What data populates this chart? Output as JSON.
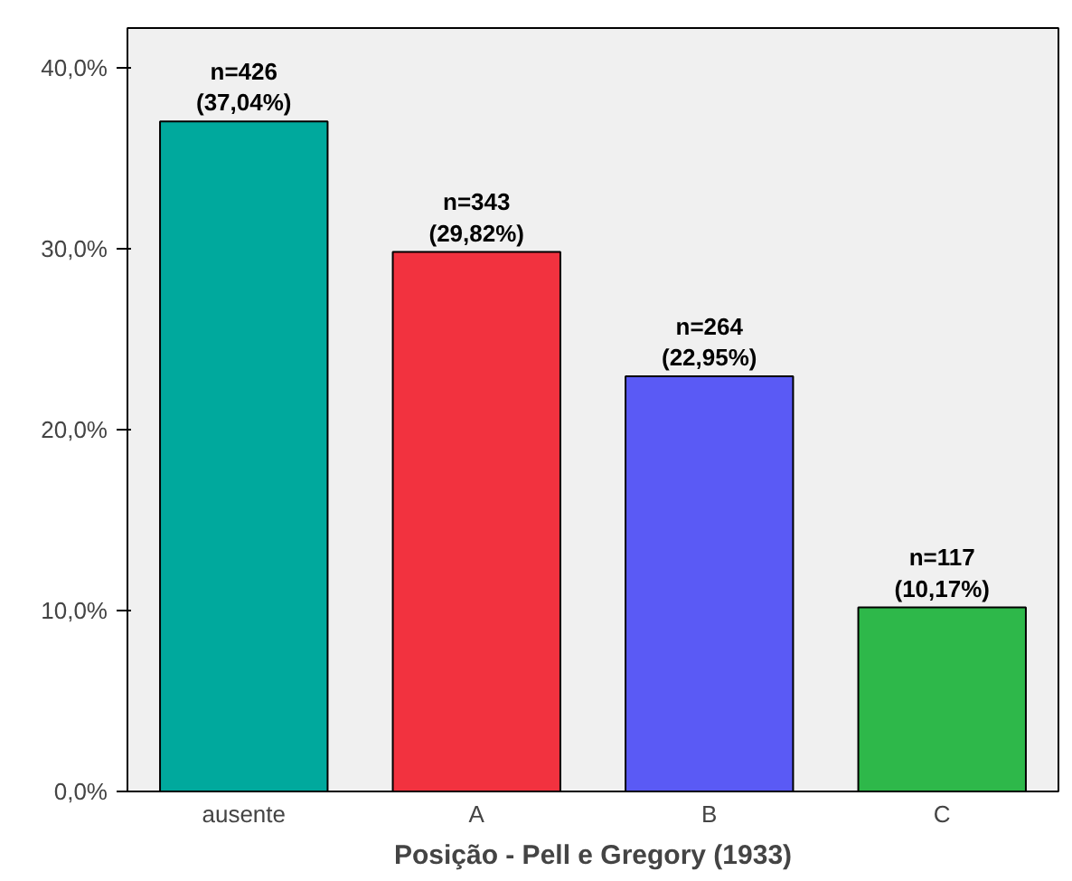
{
  "chart_data": {
    "type": "bar",
    "xlabel": "Posição - Pell e Gregory (1933)",
    "categories": [
      "ausente",
      "A",
      "B",
      "C"
    ],
    "values": [
      37.04,
      29.82,
      22.95,
      10.17
    ],
    "colors": [
      "#00a99d",
      "#f2323f",
      "#5a5af5",
      "#2eb84a"
    ],
    "value_labels": [
      "n=426\n(37,04%)",
      "n=343\n(29,82%)",
      "n=264\n(22,95%)",
      "n=117\n(10,17%)"
    ],
    "ylim": [
      0,
      42.2
    ],
    "yticks": [
      {
        "value": 0,
        "label": "0,0%"
      },
      {
        "value": 10,
        "label": "10,0%"
      },
      {
        "value": 20,
        "label": "20,0%"
      },
      {
        "value": 30,
        "label": "30,0%"
      },
      {
        "value": 40,
        "label": "40,0%"
      }
    ],
    "grid": false
  }
}
